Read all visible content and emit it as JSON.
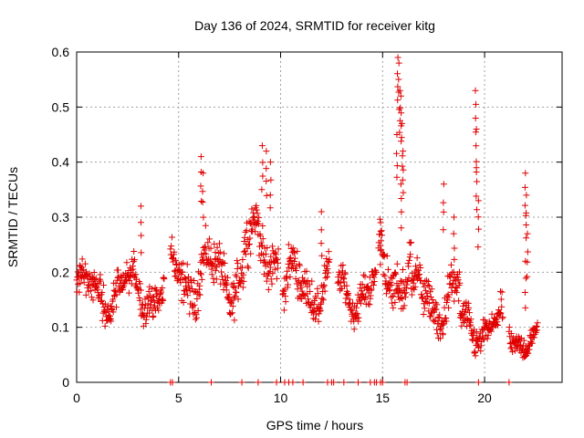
{
  "chart_data": {
    "type": "scatter",
    "title": "Day 136 of 2024, SRMTID for receiver kitg",
    "xlabel": "GPS time / hours",
    "ylabel": "SRMTID / TECUs",
    "xlim": [
      0,
      23.8
    ],
    "ylim": [
      0,
      0.6
    ],
    "xticks": [
      0,
      5,
      10,
      15,
      20
    ],
    "xtick_labels": [
      "0",
      "5",
      "10",
      "15",
      "20"
    ],
    "yticks": [
      0,
      0.1,
      0.2,
      0.3,
      0.4,
      0.5,
      0.6
    ],
    "ytick_labels": [
      "0",
      "0.1",
      "0.2",
      "0.3",
      "0.4",
      "0.5",
      "0.6"
    ],
    "grid": true,
    "marker": "+",
    "color": "#e00000",
    "segments": [
      {
        "t0": 0.0,
        "t1": 4.3,
        "base": 0.165,
        "amp": 0.035,
        "noise": 0.045
      },
      {
        "t0": 4.6,
        "t1": 8.2,
        "base": 0.195,
        "amp": 0.04,
        "noise": 0.055
      },
      {
        "t0": 8.2,
        "t1": 9.9,
        "base": 0.245,
        "amp": 0.045,
        "noise": 0.06
      },
      {
        "t0": 10.1,
        "t1": 12.4,
        "base": 0.175,
        "amp": 0.035,
        "noise": 0.05
      },
      {
        "t0": 12.8,
        "t1": 14.7,
        "base": 0.165,
        "amp": 0.03,
        "noise": 0.04
      },
      {
        "t0": 14.8,
        "t1": 16.4,
        "base": 0.205,
        "amp": 0.05,
        "noise": 0.06
      },
      {
        "t0": 16.4,
        "t1": 18.8,
        "base": 0.15,
        "amp": 0.04,
        "noise": 0.05
      },
      {
        "t0": 18.8,
        "t1": 20.9,
        "base": 0.1,
        "amp": 0.025,
        "noise": 0.04
      },
      {
        "t0": 21.2,
        "t1": 22.6,
        "base": 0.08,
        "amp": 0.02,
        "noise": 0.03
      }
    ],
    "spikes": [
      {
        "x": 6.1,
        "y": 0.41
      },
      {
        "x": 6.2,
        "y": 0.38
      },
      {
        "x": 9.1,
        "y": 0.43
      },
      {
        "x": 9.3,
        "y": 0.42
      },
      {
        "x": 9.5,
        "y": 0.4
      },
      {
        "x": 3.15,
        "y": 0.32
      },
      {
        "x": 12.0,
        "y": 0.31
      },
      {
        "x": 15.75,
        "y": 0.59
      },
      {
        "x": 15.8,
        "y": 0.58
      },
      {
        "x": 15.85,
        "y": 0.53
      },
      {
        "x": 15.9,
        "y": 0.52
      },
      {
        "x": 15.95,
        "y": 0.47
      },
      {
        "x": 15.7,
        "y": 0.45
      },
      {
        "x": 16.0,
        "y": 0.42
      },
      {
        "x": 15.9,
        "y": 0.36
      },
      {
        "x": 19.55,
        "y": 0.53
      },
      {
        "x": 19.6,
        "y": 0.46
      },
      {
        "x": 19.6,
        "y": 0.39
      },
      {
        "x": 19.7,
        "y": 0.33
      },
      {
        "x": 18.0,
        "y": 0.36
      },
      {
        "x": 22.0,
        "y": 0.38
      },
      {
        "x": 22.05,
        "y": 0.34
      },
      {
        "x": 22.1,
        "y": 0.27
      },
      {
        "x": 22.0,
        "y": 0.22
      },
      {
        "x": 18.5,
        "y": 0.3
      },
      {
        "x": 14.9,
        "y": 0.29
      }
    ],
    "zero_markers": [
      4.6,
      4.7,
      6.6,
      8.1,
      8.9,
      9.8,
      10.2,
      10.4,
      10.6,
      11.1,
      12.3,
      12.5,
      12.6,
      13.1,
      13.8,
      14.4,
      14.6,
      14.7,
      14.9,
      15.0,
      16.1,
      16.2,
      19.7,
      21.2
    ]
  }
}
